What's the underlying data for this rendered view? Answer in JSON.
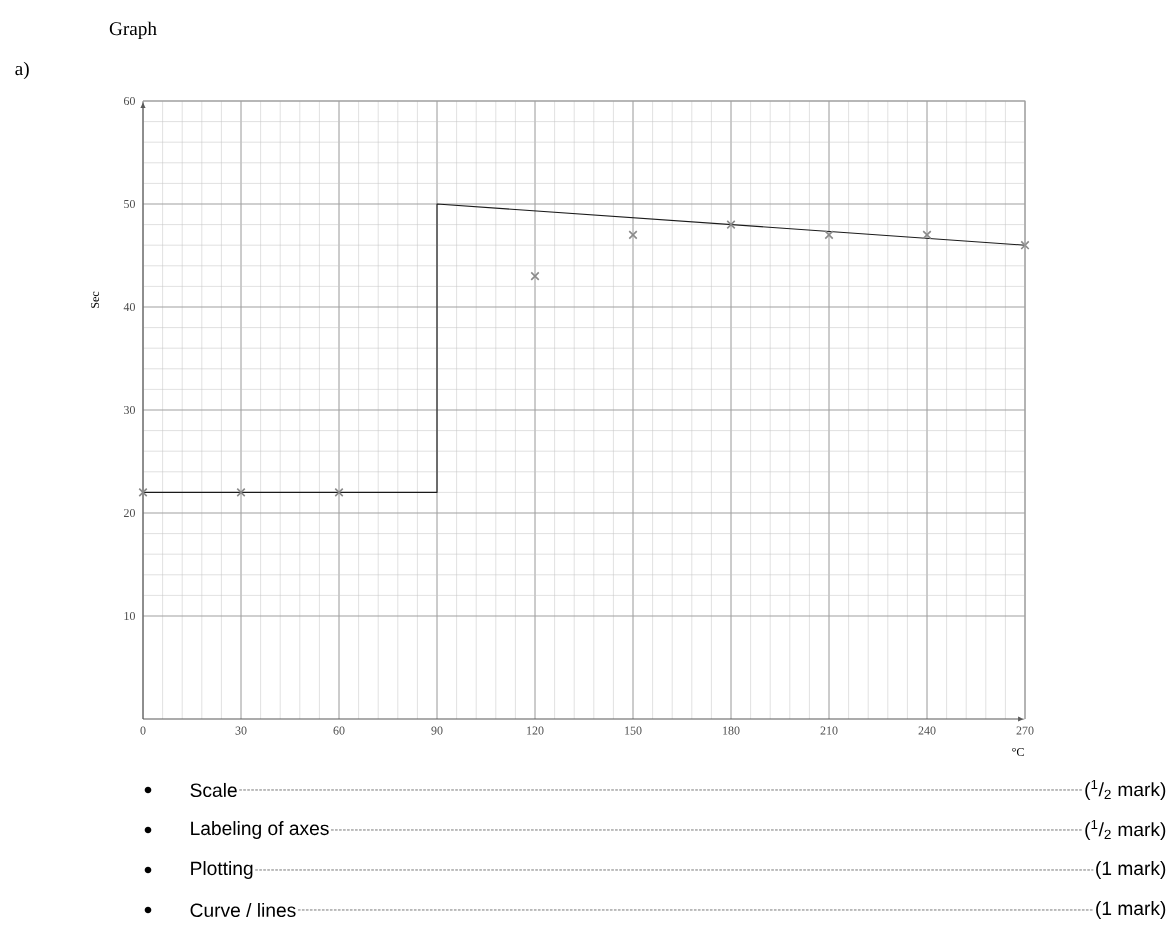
{
  "chart_data": {
    "type": "scatter",
    "title": "Graph",
    "xlabel": "°C",
    "ylabel": "Sec",
    "xlim": [
      0,
      270
    ],
    "ylim": [
      0,
      60
    ],
    "xticks": [
      0,
      30,
      60,
      90,
      120,
      150,
      180,
      210,
      240,
      270
    ],
    "yticks": [
      10,
      20,
      30,
      40,
      50,
      60
    ],
    "grid": true,
    "marker": "cross",
    "series": [
      {
        "color": "#8a8a8a",
        "x": [
          0,
          30,
          60,
          120,
          150,
          180,
          210,
          240,
          270
        ],
        "values": [
          22,
          22,
          22,
          43,
          47,
          48,
          47,
          47,
          46
        ]
      },
      {
        "type": "line",
        "color": "#1a1a1a",
        "marker": "none",
        "x": [
          0,
          90,
          90,
          270
        ],
        "values": [
          22,
          22,
          50,
          46
        ]
      }
    ],
    "annotations": [
      "a)",
      "Scale",
      "($^{1}$/$_{2}$ mark)",
      "Labeling of axes",
      "($^{1}$/$_{2}$ mark)",
      "Plotting",
      "(1 mark)",
      "Curve / lines",
      "(1 mark)"
    ]
  }
}
